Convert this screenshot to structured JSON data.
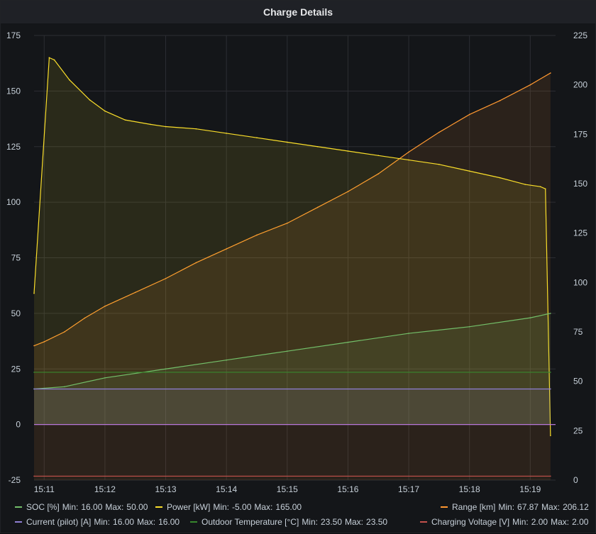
{
  "panel": {
    "title": "Charge Details"
  },
  "chart_data": {
    "type": "line",
    "x_ticks": [
      "15:11",
      "15:12",
      "15:13",
      "15:14",
      "15:15",
      "15:16",
      "15:17",
      "15:18",
      "15:19"
    ],
    "x_range": [
      "15:10:50",
      "15:19:25"
    ],
    "y_left": {
      "ticks": [
        175,
        150,
        125,
        100,
        75,
        50,
        25,
        0,
        -25
      ],
      "range": [
        -25,
        175
      ]
    },
    "y_right": {
      "ticks": [
        225,
        200,
        175,
        150,
        125,
        100,
        75,
        50,
        25,
        0
      ],
      "range": [
        0,
        225
      ]
    },
    "grid": true,
    "legend_position": "bottom",
    "series": [
      {
        "name": "SOC [%]",
        "axis": "left",
        "color": "#73bf69",
        "fill": true,
        "min": "16.00",
        "max": "50.00",
        "x": [
          "15:10:50",
          "15:11:20",
          "15:12:00",
          "15:13:00",
          "15:14:00",
          "15:15:00",
          "15:16:00",
          "15:17:00",
          "15:18:00",
          "15:19:00",
          "15:19:20"
        ],
        "y": [
          16,
          17,
          21,
          25,
          29,
          33,
          37,
          41,
          44,
          48,
          50
        ]
      },
      {
        "name": "Power [kW]",
        "axis": "left",
        "color": "#fade2a",
        "fill": true,
        "min": "-5.00",
        "max": "165.00",
        "x": [
          "15:10:50",
          "15:11:05",
          "15:11:10",
          "15:11:25",
          "15:11:45",
          "15:12:00",
          "15:12:20",
          "15:12:45",
          "15:13:00",
          "15:13:30",
          "15:14:00",
          "15:14:30",
          "15:15:00",
          "15:15:30",
          "15:16:00",
          "15:16:30",
          "15:17:00",
          "15:17:30",
          "15:18:00",
          "15:18:30",
          "15:18:55",
          "15:19:10",
          "15:19:15",
          "15:19:20"
        ],
        "y": [
          59,
          165,
          164,
          155,
          146,
          141,
          137,
          135,
          134,
          133,
          131,
          129,
          127,
          125,
          123,
          121,
          119,
          117,
          114,
          111,
          108,
          107,
          106,
          -5
        ]
      },
      {
        "name": "Range [km]",
        "axis": "right",
        "color": "#ff9830",
        "fill": true,
        "min": "67.87",
        "max": "206.12",
        "x": [
          "15:10:50",
          "15:11:00",
          "15:11:20",
          "15:11:40",
          "15:12:00",
          "15:12:30",
          "15:13:00",
          "15:13:30",
          "15:14:00",
          "15:14:30",
          "15:15:00",
          "15:15:30",
          "15:16:00",
          "15:16:30",
          "15:17:00",
          "15:17:30",
          "15:18:00",
          "15:18:30",
          "15:19:00",
          "15:19:20"
        ],
        "y": [
          68,
          70,
          75,
          82,
          88,
          95,
          102,
          110,
          117,
          124,
          130,
          138,
          146,
          155,
          166,
          176,
          185,
          192,
          200,
          206
        ]
      },
      {
        "name": "Current (pilot) [A]",
        "axis": "left",
        "color": "#8f7fd4",
        "fill": true,
        "min": "16.00",
        "max": "16.00",
        "x": [
          "15:10:50",
          "15:19:20"
        ],
        "y": [
          16,
          16
        ]
      },
      {
        "name": "Outdoor Temperature [°C]",
        "axis": "left",
        "color": "#37872d",
        "fill": false,
        "min": "23.50",
        "max": "23.50",
        "x": [
          "15:10:50",
          "15:19:20"
        ],
        "y": [
          23.5,
          23.5
        ]
      },
      {
        "name": "Charging Voltage [V]",
        "axis": "right",
        "color": "#c4514c",
        "fill": false,
        "min": "2.00",
        "max": "2.00",
        "x": [
          "15:10:50",
          "15:19:20"
        ],
        "y": [
          2,
          2
        ]
      }
    ],
    "reference_line": {
      "axis": "left",
      "y": 0,
      "color": "#b877d9"
    }
  },
  "legend": {
    "min_label": "Min:",
    "max_label": "Max:",
    "rows": [
      [
        {
          "label": "SOC [%]",
          "min": "16.00",
          "max": "50.00",
          "color": "#73bf69"
        },
        {
          "label": "Power [kW]",
          "min": "-5.00",
          "max": "165.00",
          "color": "#fade2a"
        },
        {
          "label": "Range [km]",
          "min": "67.87",
          "max": "206.12",
          "color": "#ff9830"
        }
      ],
      [
        {
          "label": "Current (pilot) [A]",
          "min": "16.00",
          "max": "16.00",
          "color": "#8f7fd4"
        },
        {
          "label": "Outdoor Temperature [°C]",
          "min": "23.50",
          "max": "23.50",
          "color": "#37872d"
        },
        {
          "label": "Charging Voltage [V]",
          "min": "2.00",
          "max": "2.00",
          "color": "#c4514c"
        }
      ]
    ]
  }
}
